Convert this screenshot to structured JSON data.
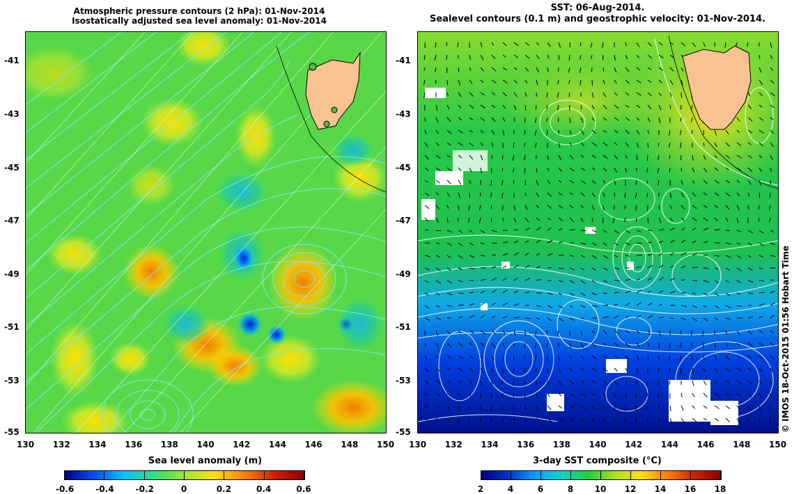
{
  "left_panel": {
    "title_line1": "Atmospheric pressure contours (2 hPa): 01-Nov-2014",
    "title_line2": "Isostatically adjusted sea level anomaly: 01-Nov-2014",
    "colorbar_label": "Sea level anomaly (m)",
    "colorbar_ticks": [
      "-0.6",
      "-0.4",
      "-0.2",
      "0",
      "0.2",
      "0.4",
      "0.6"
    ],
    "colorbar_colors": [
      "#00007f",
      "#0050ff",
      "#00c8ff",
      "#2fe07a",
      "#9be830",
      "#ffe000",
      "#ff8000",
      "#d02000",
      "#8b0000"
    ]
  },
  "right_panel": {
    "title_line1": "SST: 06-Aug-2014.",
    "title_line2": "Sealevel contours (0.1 m) and geostrophic velocity: 01-Nov-2014.",
    "colorbar_label": "3-day SST composite (°C)",
    "colorbar_ticks": [
      "2",
      "4",
      "6",
      "8",
      "10",
      "12",
      "14",
      "16",
      "18"
    ],
    "colorbar_colors": [
      "#00007f",
      "#0030d0",
      "#00a0ff",
      "#00d8c8",
      "#20d040",
      "#a8e020",
      "#ffe000",
      "#ff8000",
      "#d02000",
      "#8b0000"
    ]
  },
  "axes": {
    "lat_ticks": [
      "-41",
      "-43",
      "-45",
      "-47",
      "-49",
      "-51",
      "-53",
      "-55"
    ],
    "lon_ticks": [
      "130",
      "132",
      "134",
      "136",
      "138",
      "140",
      "142",
      "144",
      "146",
      "148",
      "150"
    ]
  },
  "credit": "© IMOS 18-Oct-2015 01:56 Hobart Time",
  "colors": {
    "land": "#f9c291",
    "contour_left": "#7fe8e8",
    "contour_right": "#ffffff"
  }
}
